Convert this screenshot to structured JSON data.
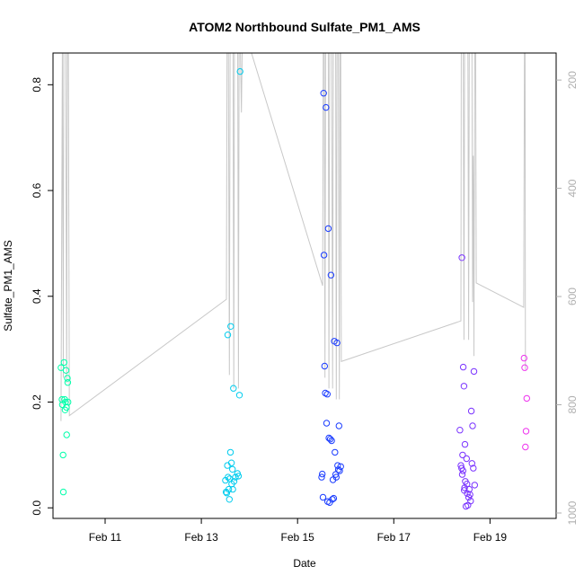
{
  "chart_data": {
    "type": "scatter",
    "title": "ATOM2 Northbound Sulfate_PM1_AMS",
    "xlabel": "Date",
    "ylabel": "Sulfate_PM1_AMS",
    "xlim": [
      "2017-02-09T22:00",
      "2017-02-20T09:00"
    ],
    "ylim": [
      -0.02,
      0.86
    ],
    "x_ticks": [
      {
        "x": "2017-02-11",
        "label": "Feb 11"
      },
      {
        "x": "2017-02-13",
        "label": "Feb 13"
      },
      {
        "x": "2017-02-15",
        "label": "Feb 15"
      },
      {
        "x": "2017-02-17",
        "label": "Feb 17"
      },
      {
        "x": "2017-02-19",
        "label": "Feb 19"
      }
    ],
    "y_ticks": [
      0.0,
      0.2,
      0.4,
      0.6,
      0.8
    ],
    "y_tick_labels": [
      "0.0",
      "0.2",
      "0.4",
      "0.6",
      "0.8"
    ],
    "y2_label": "",
    "y2_lim": [
      1010,
      150
    ],
    "y2_ticks": [
      200,
      400,
      600,
      800,
      1000
    ],
    "y2_tick_labels": [
      "200",
      "400",
      "600",
      "800",
      "1000"
    ],
    "grid": false,
    "legend": "none",
    "series": [
      {
        "color": "#00ffaa",
        "points": [
          {
            "x": "2017-02-10T02:00",
            "y": 0.265
          },
          {
            "x": "2017-02-10T02:30",
            "y": 0.205
          },
          {
            "x": "2017-02-10T02:40",
            "y": 0.195
          },
          {
            "x": "2017-02-10T03:00",
            "y": 0.1
          },
          {
            "x": "2017-02-10T03:10",
            "y": 0.03
          },
          {
            "x": "2017-02-10T03:30",
            "y": 0.275
          },
          {
            "x": "2017-02-10T03:50",
            "y": 0.205
          },
          {
            "x": "2017-02-10T04:00",
            "y": 0.185
          },
          {
            "x": "2017-02-10T04:10",
            "y": 0.2
          },
          {
            "x": "2017-02-10T04:30",
            "y": 0.26
          },
          {
            "x": "2017-02-10T04:40",
            "y": 0.19
          },
          {
            "x": "2017-02-10T04:50",
            "y": 0.138
          },
          {
            "x": "2017-02-10T05:10",
            "y": 0.245
          },
          {
            "x": "2017-02-10T05:20",
            "y": 0.237
          },
          {
            "x": "2017-02-10T05:30",
            "y": 0.2
          }
        ]
      },
      {
        "color": "#00ccee",
        "points": [
          {
            "x": "2017-02-13T12:00",
            "y": 0.052
          },
          {
            "x": "2017-02-13T12:20",
            "y": 0.03
          },
          {
            "x": "2017-02-13T12:40",
            "y": 0.028
          },
          {
            "x": "2017-02-13T13:00",
            "y": 0.08
          },
          {
            "x": "2017-02-13T13:10",
            "y": 0.327
          },
          {
            "x": "2017-02-13T13:20",
            "y": 0.058
          },
          {
            "x": "2017-02-13T13:40",
            "y": 0.035
          },
          {
            "x": "2017-02-13T14:00",
            "y": 0.016
          },
          {
            "x": "2017-02-13T14:10",
            "y": 0.055
          },
          {
            "x": "2017-02-13T14:30",
            "y": 0.105
          },
          {
            "x": "2017-02-13T14:40",
            "y": 0.343
          },
          {
            "x": "2017-02-13T15:00",
            "y": 0.085
          },
          {
            "x": "2017-02-13T15:10",
            "y": 0.045
          },
          {
            "x": "2017-02-13T15:30",
            "y": 0.073
          },
          {
            "x": "2017-02-13T15:40",
            "y": 0.035
          },
          {
            "x": "2017-02-13T16:00",
            "y": 0.226
          },
          {
            "x": "2017-02-13T16:20",
            "y": 0.05
          },
          {
            "x": "2017-02-13T17:00",
            "y": 0.058
          },
          {
            "x": "2017-02-13T18:00",
            "y": 0.065
          },
          {
            "x": "2017-02-13T18:30",
            "y": 0.06
          },
          {
            "x": "2017-02-13T19:00",
            "y": 0.213
          },
          {
            "x": "2017-02-13T19:20",
            "y": 0.825
          }
        ]
      },
      {
        "color": "#1a3cff",
        "points": [
          {
            "x": "2017-02-15T12:00",
            "y": 0.058
          },
          {
            "x": "2017-02-15T12:20",
            "y": 0.064
          },
          {
            "x": "2017-02-15T12:40",
            "y": 0.02
          },
          {
            "x": "2017-02-15T13:00",
            "y": 0.784
          },
          {
            "x": "2017-02-15T13:10",
            "y": 0.478
          },
          {
            "x": "2017-02-15T13:30",
            "y": 0.268
          },
          {
            "x": "2017-02-15T13:50",
            "y": 0.217
          },
          {
            "x": "2017-02-15T14:10",
            "y": 0.757
          },
          {
            "x": "2017-02-15T14:30",
            "y": 0.16
          },
          {
            "x": "2017-02-15T14:50",
            "y": 0.215
          },
          {
            "x": "2017-02-15T15:00",
            "y": 0.012
          },
          {
            "x": "2017-02-15T15:20",
            "y": 0.528
          },
          {
            "x": "2017-02-15T15:40",
            "y": 0.132
          },
          {
            "x": "2017-02-15T16:00",
            "y": 0.01
          },
          {
            "x": "2017-02-15T16:20",
            "y": 0.13
          },
          {
            "x": "2017-02-15T16:40",
            "y": 0.44
          },
          {
            "x": "2017-02-15T17:00",
            "y": 0.127
          },
          {
            "x": "2017-02-15T17:20",
            "y": 0.016
          },
          {
            "x": "2017-02-15T17:40",
            "y": 0.053
          },
          {
            "x": "2017-02-15T18:00",
            "y": 0.018
          },
          {
            "x": "2017-02-15T18:20",
            "y": 0.315
          },
          {
            "x": "2017-02-15T18:40",
            "y": 0.105
          },
          {
            "x": "2017-02-15T19:00",
            "y": 0.063
          },
          {
            "x": "2017-02-15T19:20",
            "y": 0.058
          },
          {
            "x": "2017-02-15T19:40",
            "y": 0.312
          },
          {
            "x": "2017-02-15T20:00",
            "y": 0.08
          },
          {
            "x": "2017-02-15T20:20",
            "y": 0.072
          },
          {
            "x": "2017-02-15T20:40",
            "y": 0.155
          },
          {
            "x": "2017-02-15T21:00",
            "y": 0.07
          },
          {
            "x": "2017-02-15T21:30",
            "y": 0.078
          }
        ]
      },
      {
        "color": "#7a33ff",
        "points": [
          {
            "x": "2017-02-18T09:00",
            "y": 0.147
          },
          {
            "x": "2017-02-18T09:30",
            "y": 0.08
          },
          {
            "x": "2017-02-18T09:50",
            "y": 0.075
          },
          {
            "x": "2017-02-18T10:00",
            "y": 0.473
          },
          {
            "x": "2017-02-18T10:10",
            "y": 0.063
          },
          {
            "x": "2017-02-18T10:20",
            "y": 0.1
          },
          {
            "x": "2017-02-18T10:30",
            "y": 0.07
          },
          {
            "x": "2017-02-18T10:40",
            "y": 0.266
          },
          {
            "x": "2017-02-18T11:00",
            "y": 0.23
          },
          {
            "x": "2017-02-18T11:10",
            "y": 0.033
          },
          {
            "x": "2017-02-18T11:20",
            "y": 0.038
          },
          {
            "x": "2017-02-18T11:30",
            "y": 0.12
          },
          {
            "x": "2017-02-18T11:40",
            "y": 0.05
          },
          {
            "x": "2017-02-18T12:00",
            "y": 0.003
          },
          {
            "x": "2017-02-18T12:20",
            "y": 0.093
          },
          {
            "x": "2017-02-18T12:30",
            "y": 0.045
          },
          {
            "x": "2017-02-18T12:40",
            "y": 0.027
          },
          {
            "x": "2017-02-18T13:00",
            "y": 0.005
          },
          {
            "x": "2017-02-18T13:20",
            "y": 0.02
          },
          {
            "x": "2017-02-18T13:40",
            "y": 0.035
          },
          {
            "x": "2017-02-18T14:00",
            "y": 0.025
          },
          {
            "x": "2017-02-18T14:20",
            "y": 0.013
          },
          {
            "x": "2017-02-18T14:40",
            "y": 0.183
          },
          {
            "x": "2017-02-18T15:00",
            "y": 0.084
          },
          {
            "x": "2017-02-18T15:20",
            "y": 0.155
          },
          {
            "x": "2017-02-18T15:40",
            "y": 0.075
          },
          {
            "x": "2017-02-18T16:00",
            "y": 0.258
          },
          {
            "x": "2017-02-18T16:20",
            "y": 0.043
          }
        ]
      },
      {
        "color": "#ee33ee",
        "points": [
          {
            "x": "2017-02-19T17:00",
            "y": 0.283
          },
          {
            "x": "2017-02-19T17:20",
            "y": 0.265
          },
          {
            "x": "2017-02-19T17:40",
            "y": 0.115
          },
          {
            "x": "2017-02-19T18:00",
            "y": 0.145
          },
          {
            "x": "2017-02-19T18:20",
            "y": 0.207
          }
        ]
      }
    ],
    "pressure_line": {
      "color": "#c8c8c8",
      "axis": "y2",
      "points": [
        {
          "x": "2017-02-10T02:00",
          "y": 830
        },
        {
          "x": "2017-02-10T02:40",
          "y": 150
        },
        {
          "x": "2017-02-10T03:10",
          "y": 750
        },
        {
          "x": "2017-02-10T03:20",
          "y": 150
        },
        {
          "x": "2017-02-10T04:20",
          "y": 150
        },
        {
          "x": "2017-02-10T04:50",
          "y": 760
        },
        {
          "x": "2017-02-10T05:10",
          "y": 150
        },
        {
          "x": "2017-02-10T05:40",
          "y": 150
        },
        {
          "x": "2017-02-10T06:10",
          "y": 820
        },
        {
          "x": "2017-02-13T12:30",
          "y": 605
        },
        {
          "x": "2017-02-13T12:50",
          "y": 150
        },
        {
          "x": "2017-02-13T13:30",
          "y": 150
        },
        {
          "x": "2017-02-13T14:00",
          "y": 745
        },
        {
          "x": "2017-02-13T14:20",
          "y": 150
        },
        {
          "x": "2017-02-13T15:50",
          "y": 150
        },
        {
          "x": "2017-02-13T16:10",
          "y": 770
        },
        {
          "x": "2017-02-13T16:30",
          "y": 150
        },
        {
          "x": "2017-02-13T18:10",
          "y": 150
        },
        {
          "x": "2017-02-13T18:30",
          "y": 770
        },
        {
          "x": "2017-02-13T18:50",
          "y": 150
        },
        {
          "x": "2017-02-13T19:30",
          "y": 150
        },
        {
          "x": "2017-02-13T20:00",
          "y": 260
        },
        {
          "x": "2017-02-13T20:20",
          "y": 150
        },
        {
          "x": "2017-02-14T01:00",
          "y": 150
        },
        {
          "x": "2017-02-15T12:30",
          "y": 580
        },
        {
          "x": "2017-02-15T12:50",
          "y": 150
        },
        {
          "x": "2017-02-15T13:20",
          "y": 150
        },
        {
          "x": "2017-02-15T13:40",
          "y": 750
        },
        {
          "x": "2017-02-15T14:00",
          "y": 150
        },
        {
          "x": "2017-02-15T15:20",
          "y": 150
        },
        {
          "x": "2017-02-15T15:40",
          "y": 770
        },
        {
          "x": "2017-02-15T16:00",
          "y": 150
        },
        {
          "x": "2017-02-15T17:00",
          "y": 150
        },
        {
          "x": "2017-02-15T17:30",
          "y": 770
        },
        {
          "x": "2017-02-15T17:50",
          "y": 150
        },
        {
          "x": "2017-02-15T19:00",
          "y": 150
        },
        {
          "x": "2017-02-15T19:20",
          "y": 790
        },
        {
          "x": "2017-02-15T19:40",
          "y": 150
        },
        {
          "x": "2017-02-15T20:20",
          "y": 150
        },
        {
          "x": "2017-02-15T20:50",
          "y": 790
        },
        {
          "x": "2017-02-15T21:10",
          "y": 150
        },
        {
          "x": "2017-02-15T21:30",
          "y": 150
        },
        {
          "x": "2017-02-15T21:50",
          "y": 720
        },
        {
          "x": "2017-02-18T09:30",
          "y": 645
        },
        {
          "x": "2017-02-18T09:40",
          "y": 150
        },
        {
          "x": "2017-02-18T10:40",
          "y": 150
        },
        {
          "x": "2017-02-18T11:00",
          "y": 680
        },
        {
          "x": "2017-02-18T11:20",
          "y": 150
        },
        {
          "x": "2017-02-18T13:00",
          "y": 150
        },
        {
          "x": "2017-02-18T13:20",
          "y": 680
        },
        {
          "x": "2017-02-18T13:40",
          "y": 150
        },
        {
          "x": "2017-02-18T15:00",
          "y": 150
        },
        {
          "x": "2017-02-18T15:20",
          "y": 610
        },
        {
          "x": "2017-02-18T15:40",
          "y": 340
        },
        {
          "x": "2017-02-18T16:00",
          "y": 710
        },
        {
          "x": "2017-02-18T16:20",
          "y": 150
        },
        {
          "x": "2017-02-18T16:50",
          "y": 150
        },
        {
          "x": "2017-02-18T17:10",
          "y": 575
        },
        {
          "x": "2017-02-19T16:50",
          "y": 620
        },
        {
          "x": "2017-02-19T17:10",
          "y": 150
        },
        {
          "x": "2017-02-19T17:30",
          "y": 150
        },
        {
          "x": "2017-02-19T17:40",
          "y": 735
        }
      ]
    }
  }
}
